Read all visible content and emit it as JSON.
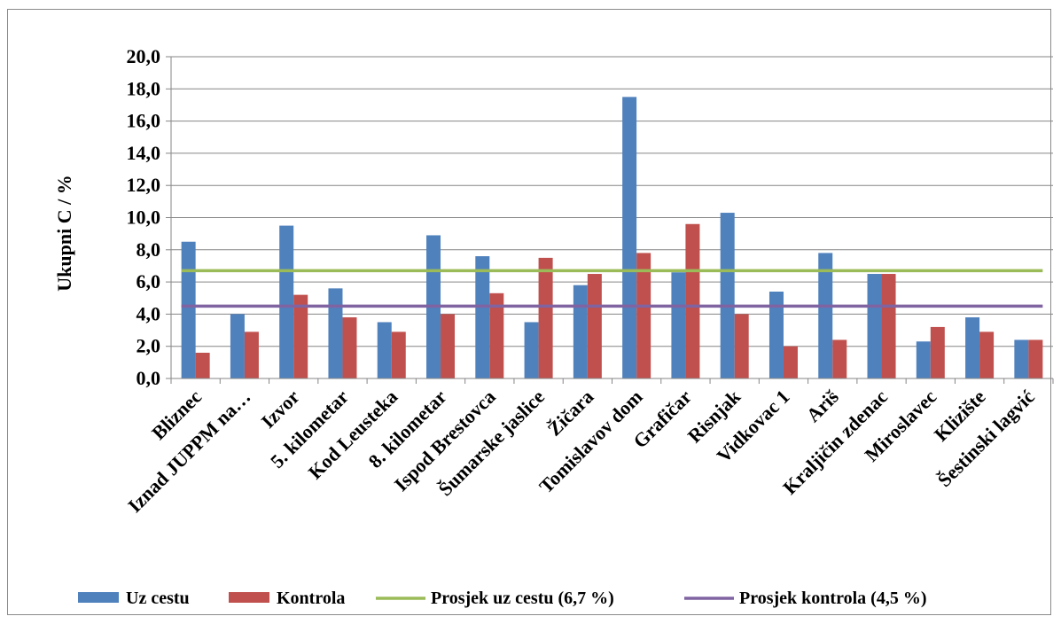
{
  "chart_data": {
    "type": "bar",
    "ylabel": "Ukupni C / %",
    "ylim": [
      0,
      20
    ],
    "yticks": [
      "0,0",
      "2,0",
      "4,0",
      "6,0",
      "8,0",
      "10,0",
      "12,0",
      "14,0",
      "16,0",
      "18,0",
      "20,0"
    ],
    "grid": true,
    "legend_position": "bottom",
    "categories": [
      "Bliznec",
      "Iznad JUPPM na…",
      "Izvor",
      "5. kilometar",
      "Kod Leusteka",
      "8. kilometar",
      "Ispod Brestovca",
      "Šumarske jaslice",
      "Žičara",
      "Tomislavov dom",
      "Grafičar",
      "Risnjak",
      "Vidkovac 1",
      "Ariš",
      "Kraljičin zdenac",
      "Miroslavec",
      "Klizište",
      "Šestinski lagvić"
    ],
    "series": [
      {
        "name": "Uz cestu",
        "color": "#4f81bd",
        "values": [
          8.5,
          4.0,
          9.5,
          5.6,
          3.5,
          8.9,
          7.6,
          3.5,
          5.8,
          17.5,
          6.6,
          10.3,
          5.4,
          7.8,
          6.5,
          2.3,
          3.8,
          2.4
        ]
      },
      {
        "name": "Kontrola",
        "color": "#c0504d",
        "values": [
          1.6,
          2.9,
          5.2,
          3.8,
          2.9,
          4.0,
          5.3,
          7.5,
          6.5,
          7.8,
          9.6,
          4.0,
          2.0,
          2.4,
          6.5,
          3.2,
          2.9,
          2.4
        ]
      }
    ],
    "reference_lines": [
      {
        "name": "Prosjek uz cestu (6,7 %)",
        "value": 6.7,
        "color": "#9bbb59"
      },
      {
        "name": "Prosjek kontrola (4,5 %)",
        "value": 4.5,
        "color": "#8064a2"
      }
    ]
  }
}
